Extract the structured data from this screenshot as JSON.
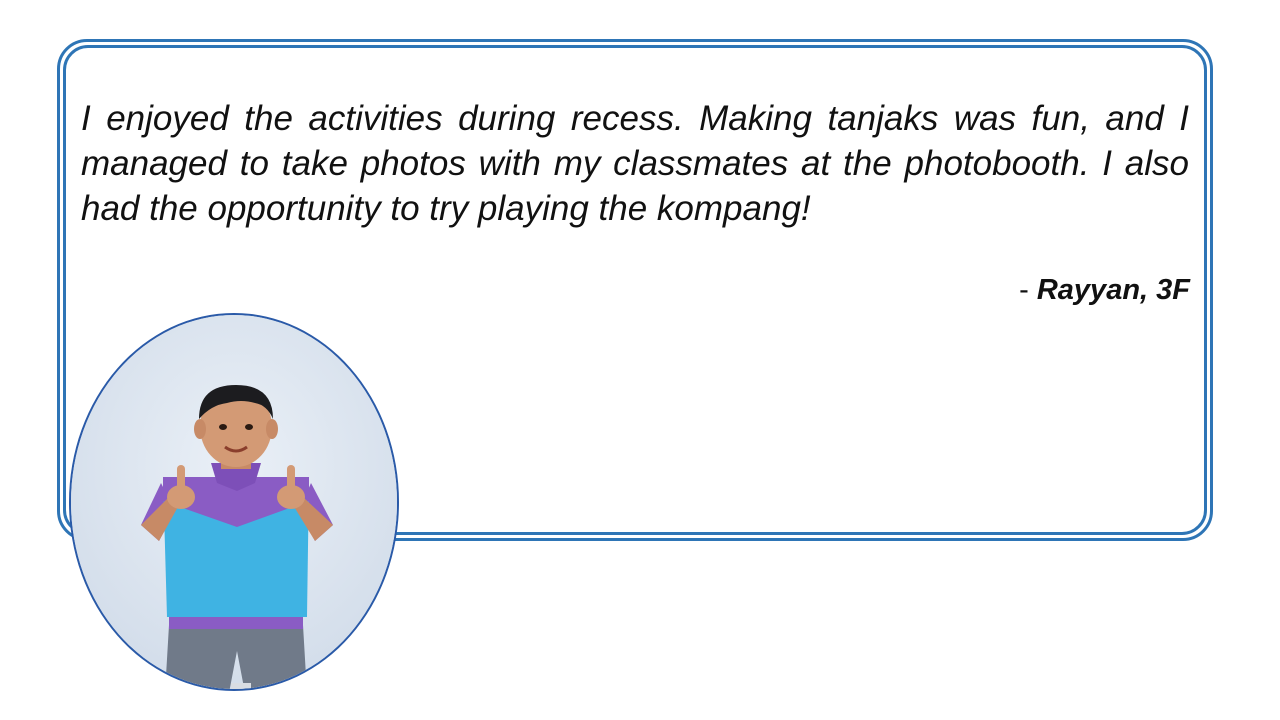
{
  "testimonial": {
    "quote": "I enjoyed the activities during recess. Making tanjaks was fun, and I managed to take photos with my classmates at the photobooth. I also had the opportunity to try playing the kompang!",
    "attribution_prefix": "- ",
    "author": "Rayyan, 3F"
  },
  "colors": {
    "frame_border": "#2e75b6",
    "photo_border": "#2a5aa8",
    "photo_background": "#d7e0ec"
  },
  "photo": {
    "subject": "student-giving-thumbs-up"
  }
}
